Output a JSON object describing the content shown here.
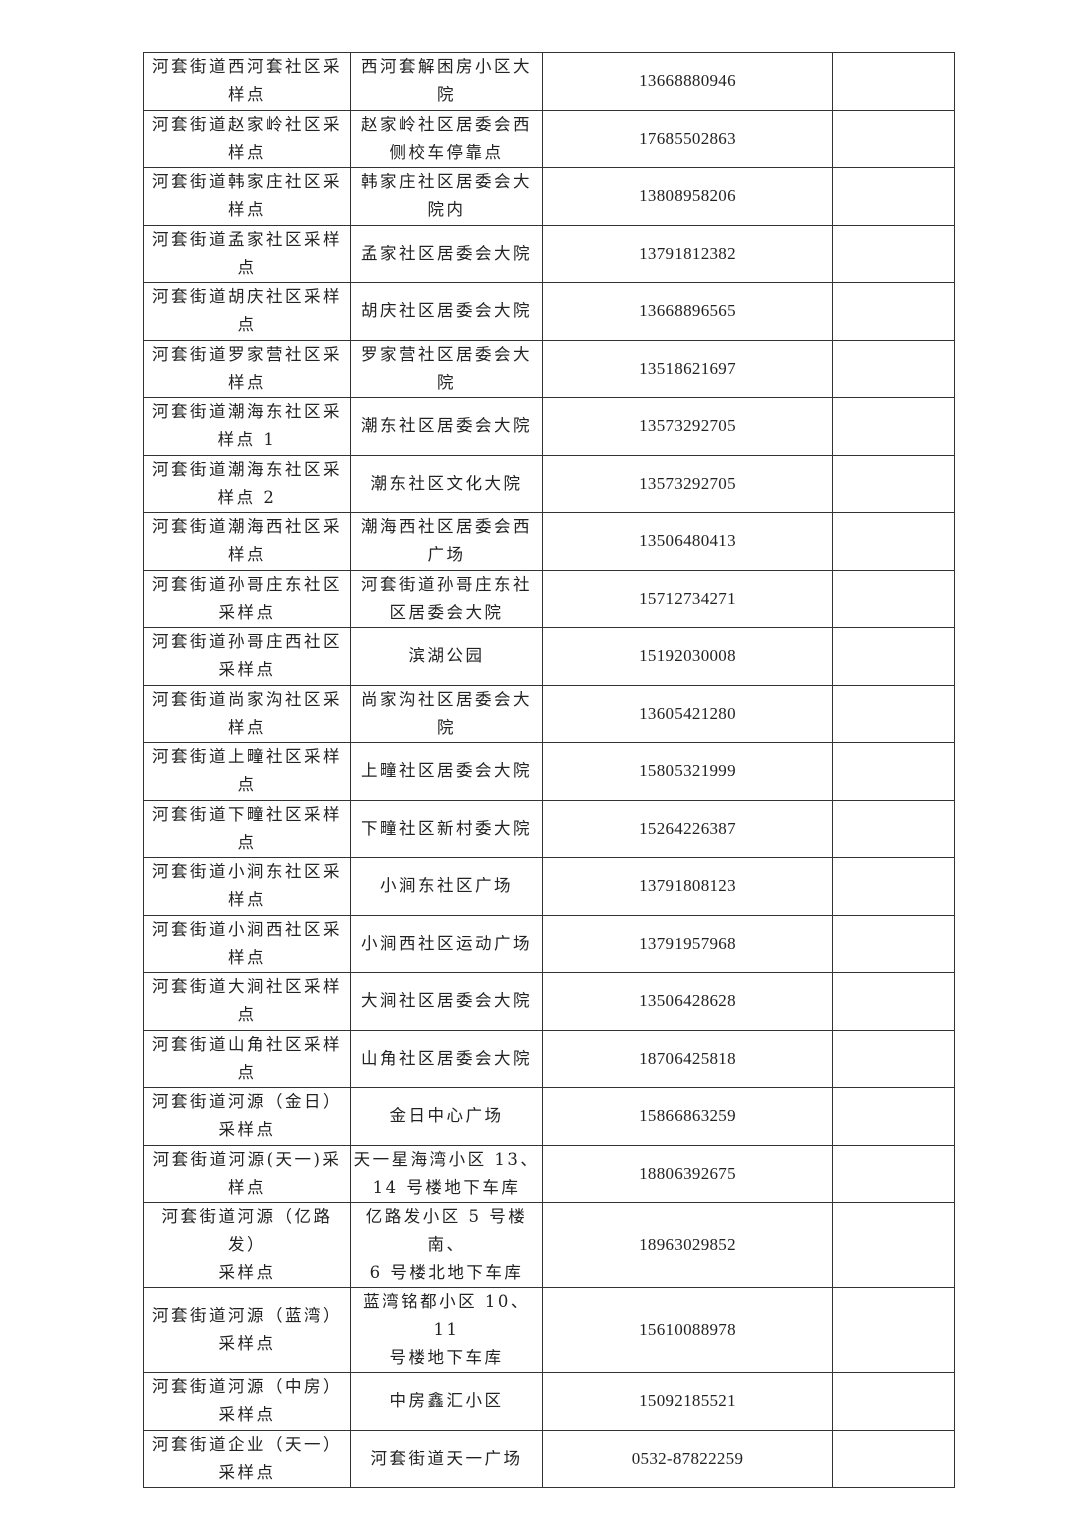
{
  "rows": [
    {
      "site": "河套街道西河套社区采\n样点",
      "location": "西河套解困房小区大\n院",
      "phone": "13668880946",
      "note": ""
    },
    {
      "site": "河套街道赵家岭社区采\n样点",
      "location": "赵家岭社区居委会西\n侧校车停靠点",
      "phone": "17685502863",
      "note": ""
    },
    {
      "site": "河套街道韩家庄社区采\n样点",
      "location": "韩家庄社区居委会大\n院内",
      "phone": "13808958206",
      "note": ""
    },
    {
      "site": "河套街道孟家社区采样\n点",
      "location": "孟家社区居委会大院",
      "phone": "13791812382",
      "note": ""
    },
    {
      "site": "河套街道胡庆社区采样\n点",
      "location": "胡庆社区居委会大院",
      "phone": "13668896565",
      "note": ""
    },
    {
      "site": "河套街道罗家营社区采\n样点",
      "location": "罗家营社区居委会大\n院",
      "phone": "13518621697",
      "note": ""
    },
    {
      "site": "河套街道潮海东社区采\n样点 1",
      "location": "潮东社区居委会大院",
      "phone": "13573292705",
      "note": ""
    },
    {
      "site": "河套街道潮海东社区采\n样点 2",
      "location": "潮东社区文化大院",
      "phone": "13573292705",
      "note": ""
    },
    {
      "site": "河套街道潮海西社区采\n样点",
      "location": "潮海西社区居委会西\n广场",
      "phone": "13506480413",
      "note": ""
    },
    {
      "site": "河套街道孙哥庄东社区\n采样点",
      "location": "河套街道孙哥庄东社\n区居委会大院",
      "phone": "15712734271",
      "note": ""
    },
    {
      "site": "河套街道孙哥庄西社区\n采样点",
      "location": "滨湖公园",
      "phone": "15192030008",
      "note": ""
    },
    {
      "site": "河套街道尚家沟社区采\n样点",
      "location": "尚家沟社区居委会大\n院",
      "phone": "13605421280",
      "note": ""
    },
    {
      "site": "河套街道上疃社区采样\n点",
      "location": "上疃社区居委会大院",
      "phone": "15805321999",
      "note": ""
    },
    {
      "site": "河套街道下疃社区采样\n点",
      "location": "下疃社区新村委大院",
      "phone": "15264226387",
      "note": ""
    },
    {
      "site": "河套街道小涧东社区采\n样点",
      "location": "小涧东社区广场",
      "phone": "13791808123",
      "note": ""
    },
    {
      "site": "河套街道小涧西社区采\n样点",
      "location": "小涧西社区运动广场",
      "phone": "13791957968",
      "note": ""
    },
    {
      "site": "河套街道大涧社区采样\n点",
      "location": "大涧社区居委会大院",
      "phone": "13506428628",
      "note": ""
    },
    {
      "site": "河套街道山角社区采样\n点",
      "location": "山角社区居委会大院",
      "phone": "18706425818",
      "note": ""
    },
    {
      "site": "河套街道河源（金日）\n采样点",
      "location": "金日中心广场",
      "phone": "15866863259",
      "note": ""
    },
    {
      "site": "河套街道河源(天一)采\n样点",
      "location": "天一星海湾小区 13、\n14 号楼地下车库",
      "phone": "18806392675",
      "note": ""
    },
    {
      "site": "河套街道河源（亿路发）\n采样点",
      "location": "亿路发小区 5 号楼南、\n6 号楼北地下车库",
      "phone": "18963029852",
      "note": ""
    },
    {
      "site": "河套街道河源（蓝湾）\n采样点",
      "location": "蓝湾铭都小区 10、11\n号楼地下车库",
      "phone": "15610088978",
      "note": ""
    },
    {
      "site": "河套街道河源（中房）\n采样点",
      "location": "中房鑫汇小区",
      "phone": "15092185521",
      "note": ""
    },
    {
      "site": "河套街道企业（天一）\n采样点",
      "location": "河套街道天一广场",
      "phone": "0532-87822259",
      "note": ""
    }
  ]
}
